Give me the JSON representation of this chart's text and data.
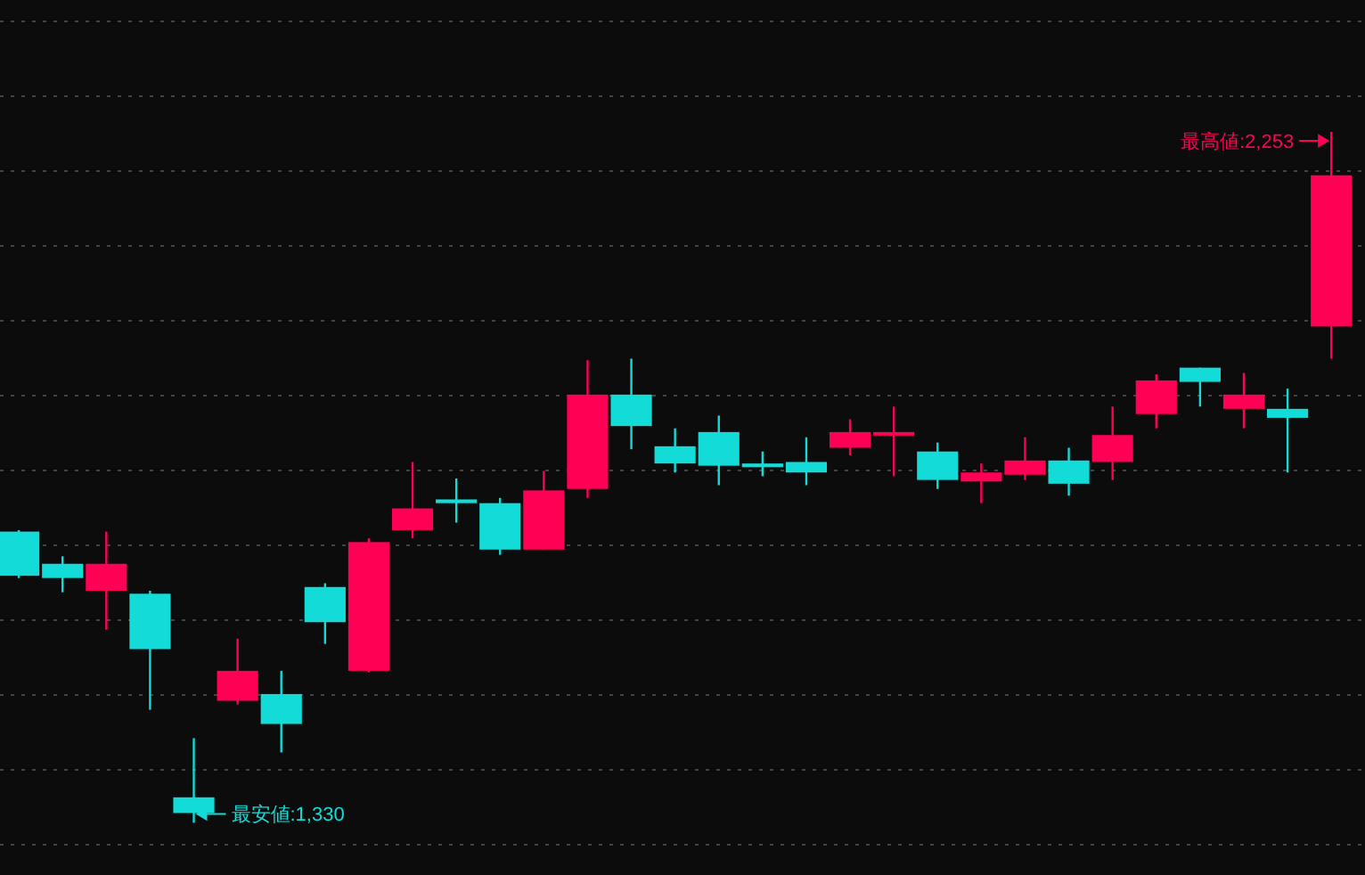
{
  "chart_data": {
    "type": "candlestick",
    "categories": [
      null,
      null,
      null,
      null,
      null,
      null,
      null,
      null,
      null,
      null,
      null,
      null,
      null,
      null,
      null,
      null,
      null,
      null,
      null,
      null,
      null,
      null,
      null,
      null,
      null,
      null,
      null,
      null,
      null,
      null,
      null
    ],
    "ohlc": [
      [
        1719,
        1721,
        1657,
        1660
      ],
      [
        1676,
        1686,
        1638,
        1657
      ],
      [
        1640,
        1719,
        1588,
        1676
      ],
      [
        1636,
        1640,
        1481,
        1562
      ],
      [
        1364,
        1443,
        1330,
        1343
      ],
      [
        1493,
        1576,
        1488,
        1533
      ],
      [
        1502,
        1533,
        1424,
        1462
      ],
      [
        1645,
        1650,
        1569,
        1598
      ],
      [
        1533,
        1710,
        1531,
        1705
      ],
      [
        1721,
        1812,
        1710,
        1750
      ],
      [
        1762,
        1790,
        1731,
        1757
      ],
      [
        1757,
        1764,
        1688,
        1695
      ],
      [
        1695,
        1800,
        1695,
        1774
      ],
      [
        1776,
        1948,
        1764,
        1902
      ],
      [
        1902,
        1950,
        1829,
        1860
      ],
      [
        1833,
        1857,
        1798,
        1810
      ],
      [
        1852,
        1874,
        1781,
        1807
      ],
      [
        1810,
        1826,
        1793,
        1805
      ],
      [
        1812,
        1845,
        1781,
        1798
      ],
      [
        1831,
        1869,
        1821,
        1852
      ],
      [
        1850,
        1886,
        1793,
        1852
      ],
      [
        1826,
        1838,
        1776,
        1788
      ],
      [
        1786,
        1810,
        1757,
        1798
      ],
      [
        1795,
        1845,
        1788,
        1814
      ],
      [
        1814,
        1831,
        1767,
        1783
      ],
      [
        1812,
        1886,
        1788,
        1848
      ],
      [
        1876,
        1929,
        1857,
        1921
      ],
      [
        1938,
        1938,
        1886,
        1919
      ],
      [
        1883,
        1931,
        1857,
        1902
      ],
      [
        1883,
        1910,
        1798,
        1871
      ],
      [
        1993,
        2253,
        1950,
        2195
      ]
    ],
    "colors": [
      "#13dcd8",
      "#13dcd8",
      "#ff0055",
      "#13dcd8",
      "#13dcd8",
      "#ff0055",
      "#13dcd8",
      "#13dcd8",
      "#ff0055",
      "#ff0055",
      "#13dcd8",
      "#13dcd8",
      "#ff0055",
      "#ff0055",
      "#13dcd8",
      "#13dcd8",
      "#13dcd8",
      "#13dcd8",
      "#13dcd8",
      "#ff0055",
      "#ff0055",
      "#13dcd8",
      "#ff0055",
      "#ff0055",
      "#13dcd8",
      "#ff0055",
      "#ff0055",
      "#13dcd8",
      "#ff0055",
      "#13dcd8",
      "#ff0055"
    ],
    "grid": "y",
    "annotations": [
      "最高値:2,253",
      "最安値:1,330"
    ]
  }
}
